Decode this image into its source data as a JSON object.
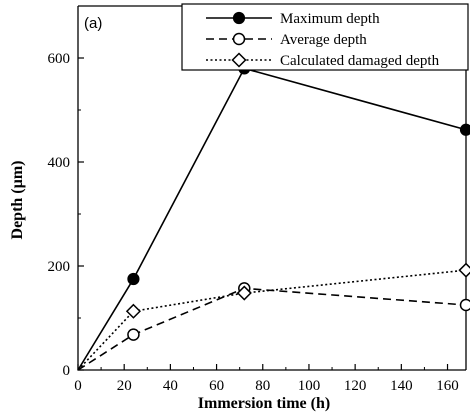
{
  "chart_data": {
    "type": "line",
    "panel_label": "(a)",
    "xlabel": "Immersion time (h)",
    "ylabel": "Depth (µm)",
    "xlim": [
      0,
      168
    ],
    "ylim": [
      0,
      700
    ],
    "xticks": [
      0,
      20,
      40,
      60,
      80,
      100,
      120,
      140,
      160
    ],
    "yticks": [
      0,
      200,
      400,
      600
    ],
    "legend_position": "top-right",
    "grid": false,
    "series": [
      {
        "name": "Maximum depth",
        "line_style": "solid",
        "marker": "filled-circle",
        "x": [
          0,
          24,
          72,
          168
        ],
        "y": [
          0,
          175,
          580,
          462
        ]
      },
      {
        "name": "Average depth",
        "line_style": "dashed",
        "marker": "open-circle",
        "x": [
          0,
          24,
          72,
          168
        ],
        "y": [
          0,
          68,
          157,
          125
        ]
      },
      {
        "name": "Calculated damaged depth",
        "line_style": "dotted",
        "marker": "open-diamond",
        "x": [
          0,
          24,
          72,
          168
        ],
        "y": [
          0,
          113,
          148,
          192
        ]
      }
    ]
  }
}
